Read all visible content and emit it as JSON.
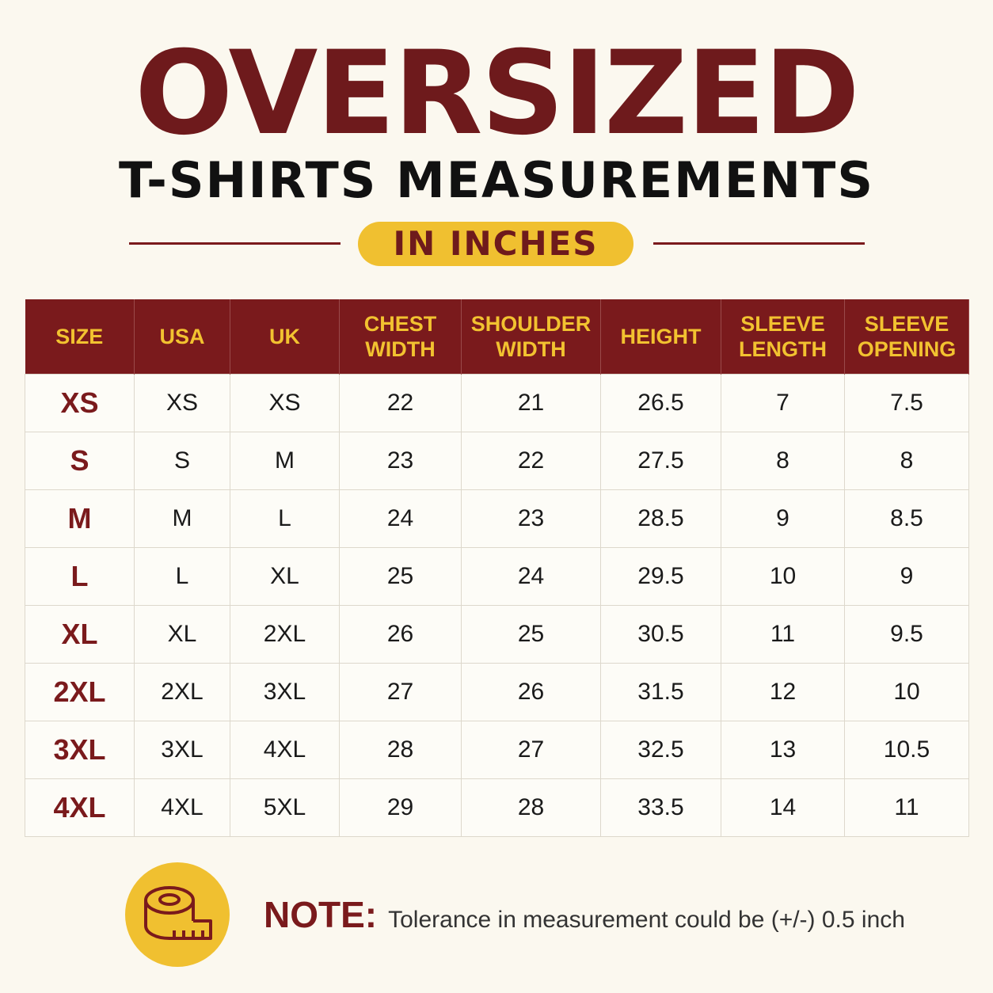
{
  "header": {
    "title": "OVERSIZED",
    "subtitle": "T-SHIRTS MEASUREMENTS",
    "badge": "IN INCHES"
  },
  "table": {
    "headers": [
      "SIZE",
      "USA",
      "UK",
      "CHEST WIDTH",
      "SHOULDER WIDTH",
      "HEIGHT",
      "SLEEVE LENGTH",
      "SLEEVE OPENING"
    ],
    "rows": [
      [
        "XS",
        "XS",
        "XS",
        22,
        21,
        26.5,
        7,
        7.5
      ],
      [
        "S",
        "S",
        "M",
        23,
        22,
        27.5,
        8,
        8
      ],
      [
        "M",
        "M",
        "L",
        24,
        23,
        28.5,
        9,
        8.5
      ],
      [
        "L",
        "L",
        "XL",
        25,
        24,
        29.5,
        10,
        9
      ],
      [
        "XL",
        "XL",
        "2XL",
        26,
        25,
        30.5,
        11,
        9.5
      ],
      [
        "2XL",
        "2XL",
        "3XL",
        27,
        26,
        31.5,
        12,
        10
      ],
      [
        "3XL",
        "3XL",
        "4XL",
        28,
        27,
        32.5,
        13,
        10.5
      ],
      [
        "4XL",
        "4XL",
        "5XL",
        29,
        28,
        33.5,
        14,
        11
      ]
    ]
  },
  "note": {
    "label": "NOTE:",
    "text": "Tolerance in measurement could be (+/-) 0.5 inch"
  }
}
